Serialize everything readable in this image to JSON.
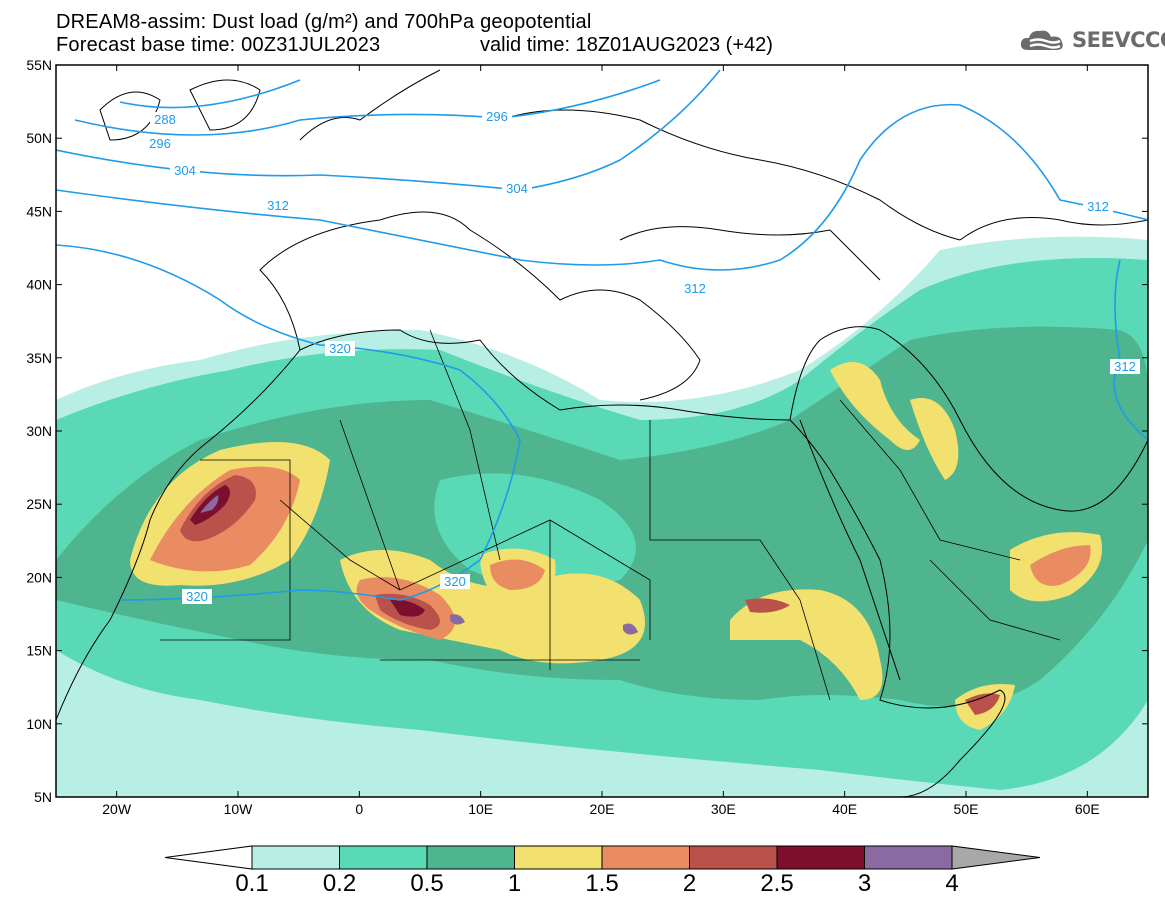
{
  "header": {
    "title_line1": "DREAM8-assim: Dust load (g/m²) and 700hPa geopotential",
    "title_line2_left": "Forecast base time: 00Z31JUL2023",
    "title_line2_right": "valid time: 18Z01AUG2023 (+42)",
    "logo_text": "SEEVCCC"
  },
  "axes": {
    "lat_labels": [
      "55N",
      "50N",
      "45N",
      "40N",
      "35N",
      "30N",
      "25N",
      "20N",
      "15N",
      "10N",
      "5N"
    ],
    "lon_labels": [
      "20W",
      "10W",
      "0",
      "10E",
      "20E",
      "30E",
      "40E",
      "50E",
      "60E"
    ]
  },
  "contours": {
    "geopotential_labels": [
      "288",
      "296",
      "304",
      "312",
      "320",
      "296",
      "304",
      "312",
      "312",
      "312",
      "320",
      "320",
      "312"
    ]
  },
  "colorbar": {
    "colors": [
      "#ffffff",
      "#b8efe4",
      "#5ad9b6",
      "#4fb58f",
      "#f2e06f",
      "#e98c62",
      "#b8524a",
      "#7c0f2d",
      "#8a6aa0",
      "#a8a8a8"
    ],
    "labels": [
      "0.1",
      "0.2",
      "0.5",
      "1",
      "1.5",
      "2",
      "2.5",
      "3",
      "4"
    ]
  },
  "palette": {
    "contour_line": "#1f9bea",
    "border_line": "#000000"
  }
}
